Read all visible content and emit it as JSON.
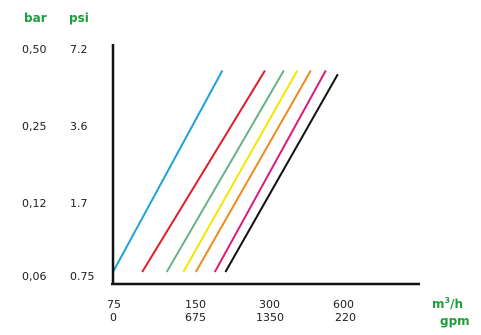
{
  "chart_data": {
    "type": "line",
    "title": "",
    "x_units": [
      "m³/h",
      "gpm"
    ],
    "y_units": [
      "bar",
      "psi"
    ],
    "units_color": "#1e9e3a",
    "y_scale": "categorical",
    "x_scale": "categorical",
    "y_ticks_bar": [
      "0,50",
      "0,25",
      "0,12",
      "0,06"
    ],
    "y_ticks_psi": [
      "7.2",
      "3.6",
      "1.7",
      "0.75"
    ],
    "x_ticks_m3h": [
      "75",
      "150",
      "300",
      "600"
    ],
    "x_ticks_gpm": [
      "0",
      "675",
      "1350",
      "220"
    ],
    "grid": false,
    "legend": "none",
    "series": [
      {
        "color": "#1fa0dc",
        "points": [
          [
            0.0,
            0.0
          ],
          [
            1.4,
            2.73
          ]
        ]
      },
      {
        "color": "#e11d2b",
        "points": [
          [
            0.37,
            0.0
          ],
          [
            1.96,
            2.73
          ]
        ]
      },
      {
        "color": "#6ab08a",
        "points": [
          [
            0.68,
            0.0
          ],
          [
            2.21,
            2.73
          ]
        ]
      },
      {
        "color": "#f4e600",
        "points": [
          [
            0.89,
            0.0
          ],
          [
            2.39,
            2.73
          ]
        ]
      },
      {
        "color": "#f08a1c",
        "points": [
          [
            1.05,
            0.0
          ],
          [
            2.57,
            2.73
          ]
        ]
      },
      {
        "color": "#e0197d",
        "points": [
          [
            1.3,
            0.0
          ],
          [
            2.77,
            2.73
          ]
        ]
      },
      {
        "color": "#111111",
        "points": [
          [
            1.44,
            0.0
          ],
          [
            2.93,
            2.68
          ]
        ]
      }
    ]
  }
}
